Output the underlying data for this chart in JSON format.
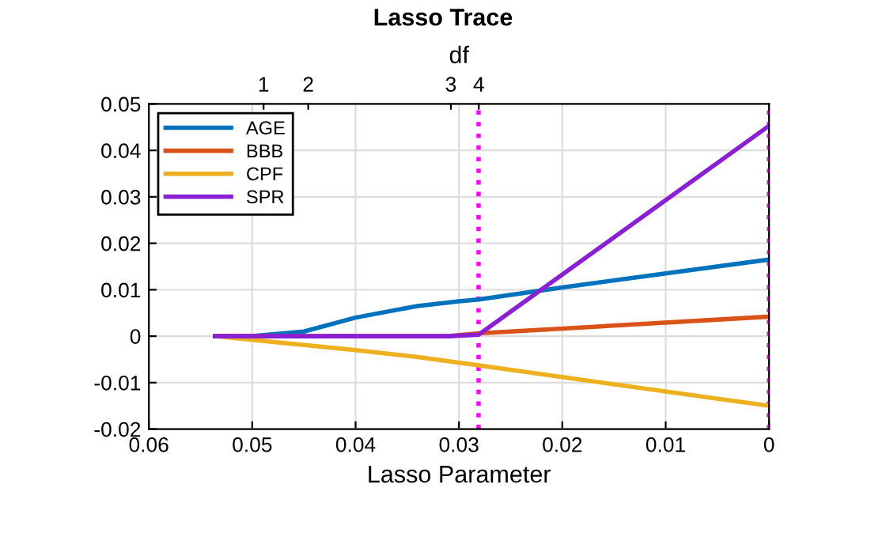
{
  "chart_data": {
    "type": "line",
    "title": "Lasso Trace",
    "xlabel": "Lasso Parameter",
    "x2label": "df",
    "xlim": [
      0.06,
      0
    ],
    "xticks": [
      0.06,
      0.05,
      0.04,
      0.03,
      0.02,
      0.01,
      0
    ],
    "ylim": [
      -0.02,
      0.05
    ],
    "yticks": [
      -0.02,
      -0.01,
      0,
      0.01,
      0.02,
      0.03,
      0.04,
      0.05
    ],
    "annotations": [
      "1",
      "2",
      "3",
      "4"
    ],
    "series": [
      {
        "name": "AGE",
        "color": "#0072bd",
        "x": [
          0.0536,
          0.05,
          0.045,
          0.04,
          0.034,
          0.03,
          0.0281,
          0.02,
          0.01,
          0
        ],
        "values": [
          0,
          0,
          0.001,
          0.004,
          0.0065,
          0.0075,
          0.0079,
          0.0105,
          0.0135,
          0.0165
        ]
      },
      {
        "name": "BBB",
        "color": "#d95319",
        "x": [
          0.0536,
          0.031,
          0.0281,
          0
        ],
        "values": [
          0,
          0,
          0.0006,
          0.0042
        ]
      },
      {
        "name": "CPF",
        "color": "#edb120",
        "x": [
          0.0536,
          0.04,
          0.034,
          0.0281,
          0
        ],
        "values": [
          0,
          -0.003,
          -0.0045,
          -0.0063,
          -0.015
        ]
      },
      {
        "name": "SPR",
        "color": "#8a1fd6",
        "x": [
          0.0536,
          0.031,
          0.0281,
          0
        ],
        "values": [
          0,
          0,
          0.0003,
          0.0453
        ]
      }
    ],
    "ref_lines": [
      {
        "axis": "x",
        "value": 0.0281,
        "color": "#ff00ff",
        "line_style": "dotted"
      },
      {
        "axis": "x",
        "value": 0,
        "color": "#ff00ff",
        "line_style": "dotted"
      }
    ],
    "grid": true,
    "legend": "top left"
  }
}
